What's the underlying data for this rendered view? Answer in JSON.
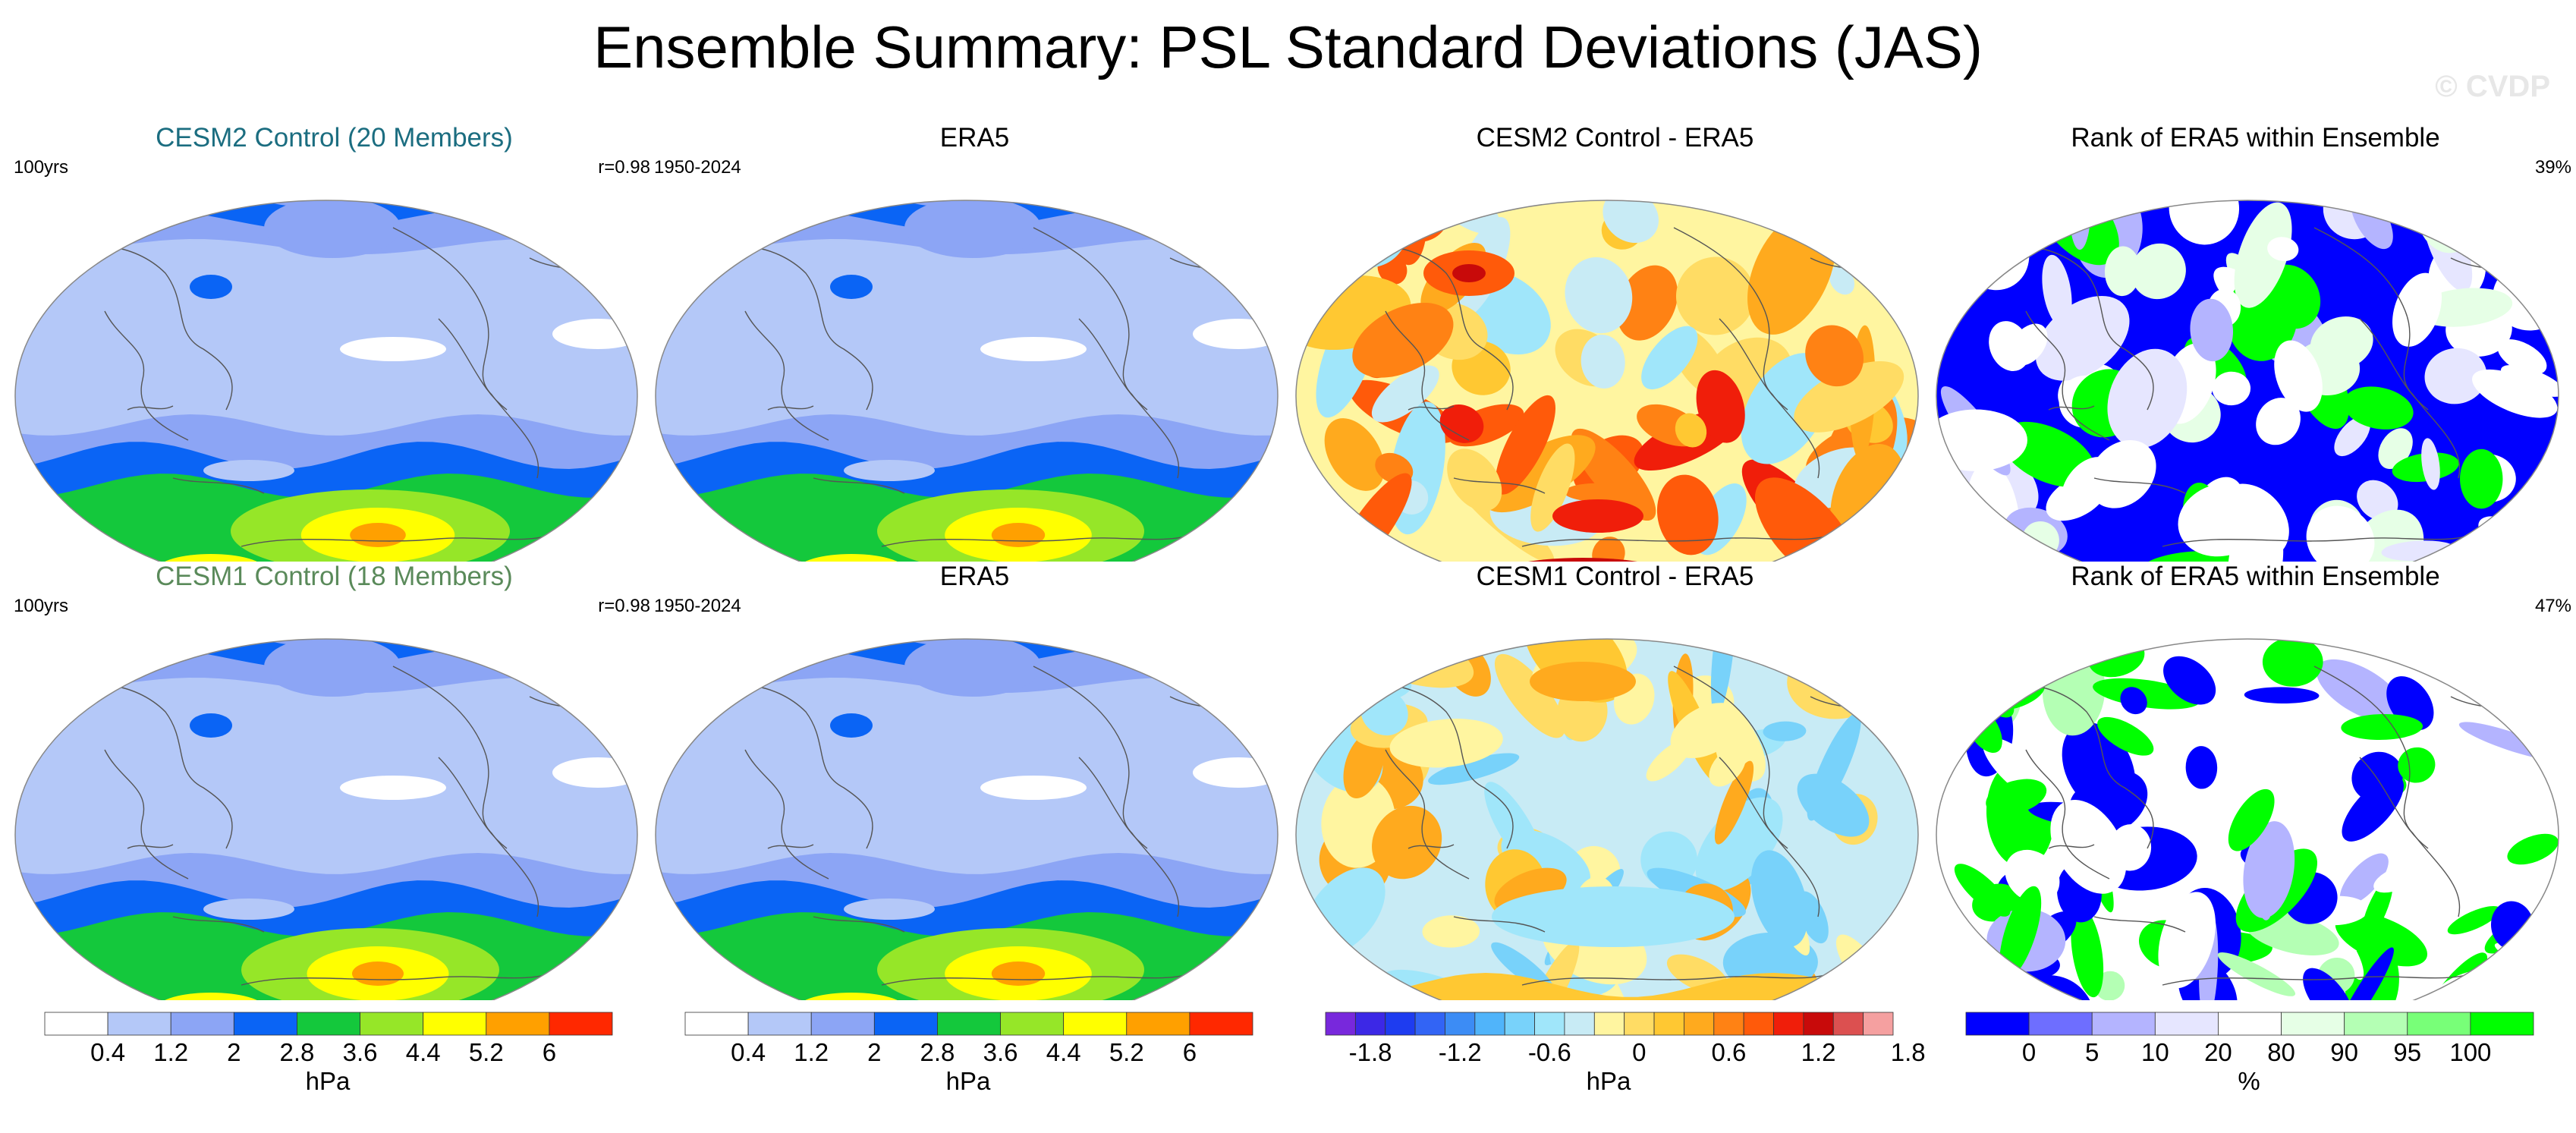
{
  "title": "Ensemble Summary: PSL Standard Deviations (JAS)",
  "watermark": "© CVDP",
  "rows": [
    {
      "panels": [
        {
          "kind": "std",
          "title": "CESM2 Control (20 Members)",
          "title_color": "#1b6d80",
          "left": "100yrs",
          "right": "r=0.98",
          "scale": 0.92
        },
        {
          "kind": "std",
          "title": "ERA5",
          "title_color": "#000000",
          "left": "1950-2024",
          "right": "",
          "scale": 0.88
        },
        {
          "kind": "diff",
          "title": "CESM2 Control - ERA5",
          "title_color": "#000000",
          "left": "",
          "right": "",
          "mode": "warm"
        },
        {
          "kind": "rank",
          "title": "Rank of ERA5 within Ensemble",
          "title_color": "#000000",
          "left": "",
          "right": "39%",
          "mode": "low"
        }
      ]
    },
    {
      "panels": [
        {
          "kind": "std",
          "title": "CESM1 Control (18 Members)",
          "title_color": "#5a8a5a",
          "left": "100yrs",
          "right": "r=0.98",
          "scale": 0.85
        },
        {
          "kind": "std",
          "title": "ERA5",
          "title_color": "#000000",
          "left": "1950-2024",
          "right": "",
          "scale": 0.88
        },
        {
          "kind": "diff",
          "title": "CESM1 Control - ERA5",
          "title_color": "#000000",
          "left": "",
          "right": "",
          "mode": "mixed"
        },
        {
          "kind": "rank",
          "title": "Rank of ERA5 within Ensemble",
          "title_color": "#000000",
          "left": "",
          "right": "47%",
          "mode": "high"
        }
      ]
    }
  ],
  "colorbars": [
    {
      "colors": [
        "#ffffff",
        "#b4c8f8",
        "#8ca5f5",
        "#0a64f5",
        "#14c83c",
        "#96e628",
        "#ffff00",
        "#ffa000",
        "#ff2800"
      ],
      "labels": [
        "0.4",
        "1.2",
        "2",
        "2.8",
        "3.6",
        "4.4",
        "5.2",
        "6"
      ],
      "unit": "hPa"
    },
    {
      "colors": [
        "#ffffff",
        "#b4c8f8",
        "#8ca5f5",
        "#0a64f5",
        "#14c83c",
        "#96e628",
        "#ffff00",
        "#ffa000",
        "#ff2800"
      ],
      "labels": [
        "0.4",
        "1.2",
        "2",
        "2.8",
        "3.6",
        "4.4",
        "5.2",
        "6"
      ],
      "unit": "hPa"
    },
    {
      "colors": [
        "#7828dc",
        "#3c28e6",
        "#1e3cf0",
        "#3264f5",
        "#3c8cf5",
        "#50b4fa",
        "#78d2fa",
        "#a0e6fa",
        "#c8ebf5",
        "#fff5a0",
        "#ffdc64",
        "#ffc832",
        "#ffaa1e",
        "#ff8214",
        "#ff5a0a",
        "#f01e0a",
        "#c80a0a",
        "#dc5050",
        "#f5a0a0"
      ],
      "labels": [
        "-1.8",
        "-1.2",
        "-0.6",
        "0",
        "0.6",
        "1.2",
        "1.8"
      ],
      "unit": "hPa"
    },
    {
      "colors": [
        "#0000ff",
        "#6e6eff",
        "#b4b4ff",
        "#e6e6ff",
        "#ffffff",
        "#e6ffe6",
        "#b4ffb4",
        "#78ff78",
        "#00ff00"
      ],
      "labels": [
        "0",
        "5",
        "10",
        "20",
        "80",
        "90",
        "95",
        "100"
      ],
      "unit": "%"
    }
  ]
}
